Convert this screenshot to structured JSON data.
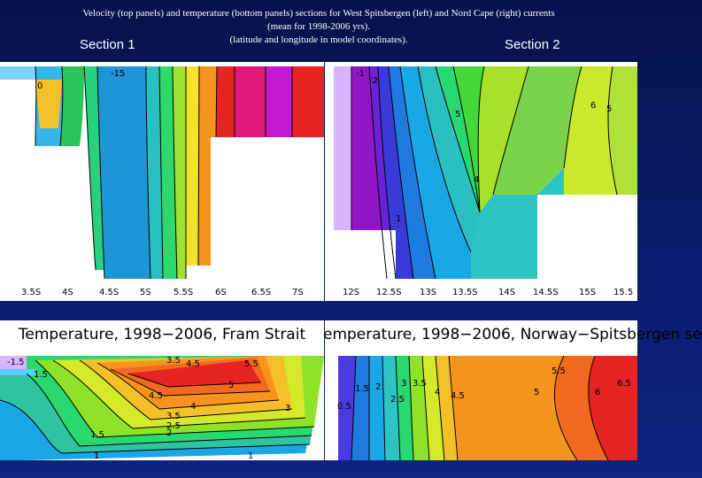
{
  "caption": {
    "line1": "Velocity (top panels) and temperature (bottom panels) sections for West Spitsbergen (left)  and Nord Cape (right) currents",
    "line2": "(mean for 1998-2006 yrs).",
    "line3": "(latitude and longitude in model coordinates)."
  },
  "section_labels": {
    "left": "Section 1",
    "right": "Section 2"
  },
  "velocity_left": {
    "ticks": [
      "3.5S",
      "4S",
      "4.5S",
      "5S",
      "5.5S",
      "6S",
      "6.5S",
      "7S"
    ],
    "contour_labels": [
      "-15",
      "0"
    ]
  },
  "velocity_right": {
    "ticks": [
      "12S",
      "12.5S",
      "13S",
      "13.5S",
      "14S",
      "14.5S",
      "15S",
      "15.5"
    ],
    "contour_labels": [
      "-1",
      "-2",
      "5",
      "4",
      "6",
      "5",
      "1"
    ]
  },
  "temperature_left": {
    "title": "Temperature, 1998−2006, Fram Strait",
    "contour_labels": [
      "-1.5",
      "1.5",
      "3.5",
      "4.5",
      "5.5",
      "5",
      "4.5",
      "4",
      "3.5",
      "3",
      "2.5",
      "2",
      "1.5",
      "1",
      "1"
    ]
  },
  "temperature_right": {
    "title": "emperature, 1998−2006, Norway−Spitsbergen se",
    "contour_labels": [
      "0.5",
      "1.5",
      "2",
      "2.5",
      "3",
      "3.5",
      "4",
      "4.5",
      "5",
      "5.5",
      "6",
      "6.5"
    ]
  }
}
